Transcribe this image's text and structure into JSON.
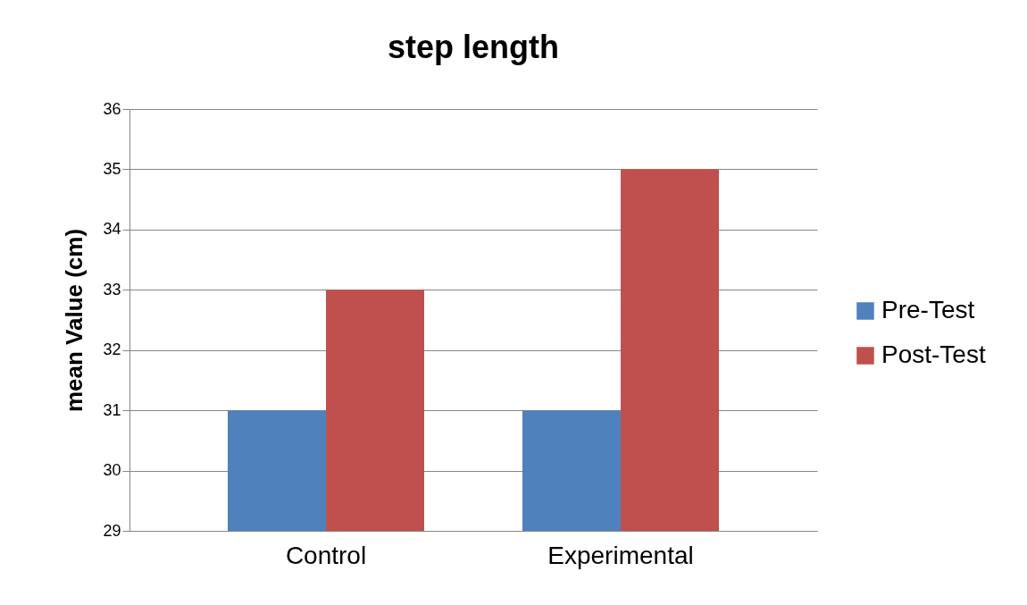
{
  "chart_data": {
    "type": "bar",
    "title": "step length",
    "ylabel": "mean Value (cm)",
    "categories": [
      "Control",
      "Experimental"
    ],
    "series": [
      {
        "name": "Pre-Test",
        "color": "#4f81bd",
        "values": [
          31,
          31
        ]
      },
      {
        "name": "Post-Test",
        "color": "#c0504d",
        "values": [
          33,
          35
        ]
      }
    ],
    "ylim": [
      29,
      36
    ],
    "yticks": [
      29,
      30,
      31,
      32,
      33,
      34,
      35,
      36
    ],
    "grid": "y",
    "legend": "right"
  }
}
